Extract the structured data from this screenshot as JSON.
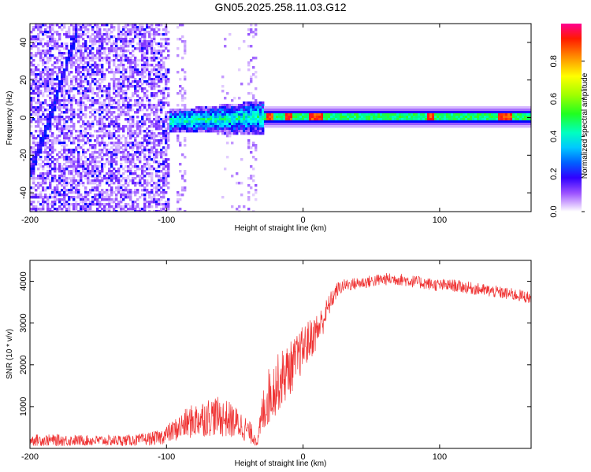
{
  "figure_title": "GN05.2025.258.11.03.G12",
  "chart_data": [
    {
      "type": "heatmap",
      "title": "GN05.2025.258.11.03.G12",
      "xlabel": "Height of straight line (km)",
      "ylabel": "Frequency (Hz)",
      "xlim": [
        -200,
        167
      ],
      "ylim": [
        -50,
        50
      ],
      "xticks": [
        -200,
        -100,
        0,
        100
      ],
      "yticks": [
        -40,
        -20,
        0,
        20,
        40
      ],
      "colorbar": {
        "label": "Normalized spectral amplitude",
        "range": [
          0.0,
          1.0
        ],
        "ticks": [
          0.0,
          0.2,
          0.4,
          0.6,
          0.8
        ],
        "tick_labels": [
          "0.0",
          "0.2",
          "0.4",
          "0.6",
          "0.8"
        ],
        "colormap": [
          "#ffffff",
          "#c8a0ff",
          "#7a2cff",
          "#0000ff",
          "#00a0ff",
          "#00ffff",
          "#00ff80",
          "#40ff00",
          "#c8ff00",
          "#ffff00",
          "#ffa000",
          "#ff2000",
          "#ff0080"
        ]
      },
      "features": [
        {
          "name": "noise-region",
          "x_range": [
            -200,
            -97
          ],
          "description_level": 0.25
        },
        {
          "name": "diagonal-streak",
          "points": [
            [
              -200,
              -30
            ],
            [
              -185,
              0
            ],
            [
              -165,
              48
            ]
          ],
          "level": 0.3
        },
        {
          "name": "transition-band",
          "x_range": [
            -100,
            -28
          ],
          "freq_range": [
            -10,
            8
          ],
          "level": 0.45
        },
        {
          "name": "carrier-line",
          "x_range": [
            -28,
            167
          ],
          "freq": 0,
          "level": 0.6
        },
        {
          "name": "hotspots",
          "x": [
            -25,
            -10,
            7,
            12,
            93,
            145,
            150
          ],
          "level": 0.95
        }
      ]
    },
    {
      "type": "line",
      "xlabel": "Height of straight line (km)",
      "ylabel": "SNR (10 * v/v)",
      "xlim": [
        -200,
        167
      ],
      "ylim": [
        0,
        4500
      ],
      "xticks": [
        -200,
        -100,
        0,
        100
      ],
      "yticks": [
        1000,
        2000,
        3000,
        4000
      ],
      "color": "#ef3333",
      "series": [
        {
          "name": "SNR",
          "x": [
            -200,
            -180,
            -160,
            -140,
            -120,
            -105,
            -95,
            -85,
            -75,
            -65,
            -55,
            -45,
            -38,
            -33,
            -30,
            -26,
            -20,
            -15,
            -10,
            -5,
            0,
            5,
            10,
            15,
            20,
            25,
            30,
            40,
            50,
            60,
            70,
            80,
            90,
            100,
            110,
            120,
            130,
            140,
            150,
            160,
            167
          ],
          "mean": [
            200,
            195,
            190,
            185,
            200,
            260,
            420,
            600,
            720,
            780,
            700,
            550,
            350,
            180,
            800,
            1200,
            1500,
            1700,
            1900,
            2100,
            2400,
            2600,
            2800,
            3100,
            3500,
            3800,
            3900,
            3950,
            4000,
            4050,
            4050,
            4000,
            3950,
            3900,
            3900,
            3850,
            3800,
            3750,
            3700,
            3650,
            3600
          ],
          "spread": [
            140,
            140,
            130,
            130,
            140,
            180,
            260,
            380,
            450,
            480,
            450,
            350,
            250,
            150,
            500,
            700,
            700,
            700,
            650,
            600,
            550,
            500,
            450,
            350,
            250,
            180,
            150,
            150,
            150,
            150,
            150,
            150,
            150,
            150,
            150,
            150,
            150,
            150,
            150,
            150,
            150
          ]
        }
      ]
    }
  ]
}
